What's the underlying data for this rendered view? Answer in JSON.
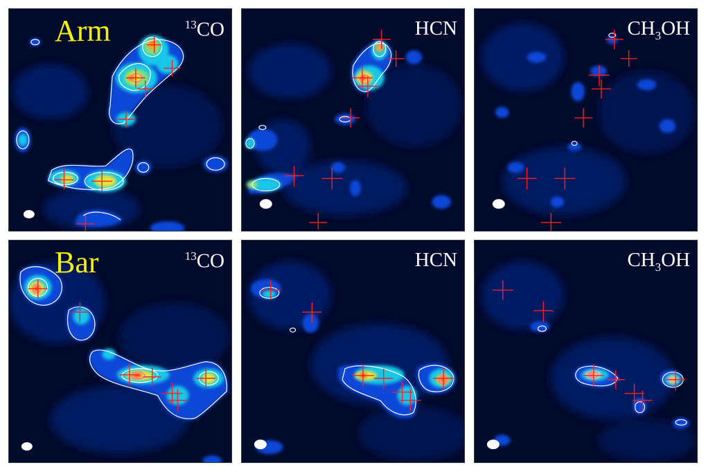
{
  "rows": [
    {
      "region": "Arm"
    },
    {
      "region": "Bar"
    }
  ],
  "molecules": [
    {
      "pre_sup": "13",
      "base": "CO",
      "sub": "",
      "post": ""
    },
    {
      "pre_sup": "",
      "base": "HCN",
      "sub": "",
      "post": ""
    },
    {
      "pre_sup": "",
      "base": "CH",
      "sub": "3",
      "post": "OH"
    }
  ],
  "colors": {
    "region_label": "#f2ee10",
    "molecule_label": "#ffffff",
    "marker": "#ff1f1f",
    "contour": "#ffffff",
    "background": "#000412"
  },
  "icons": {
    "marker": "red-plus-marker",
    "beam": "white-ellipse-beam"
  }
}
